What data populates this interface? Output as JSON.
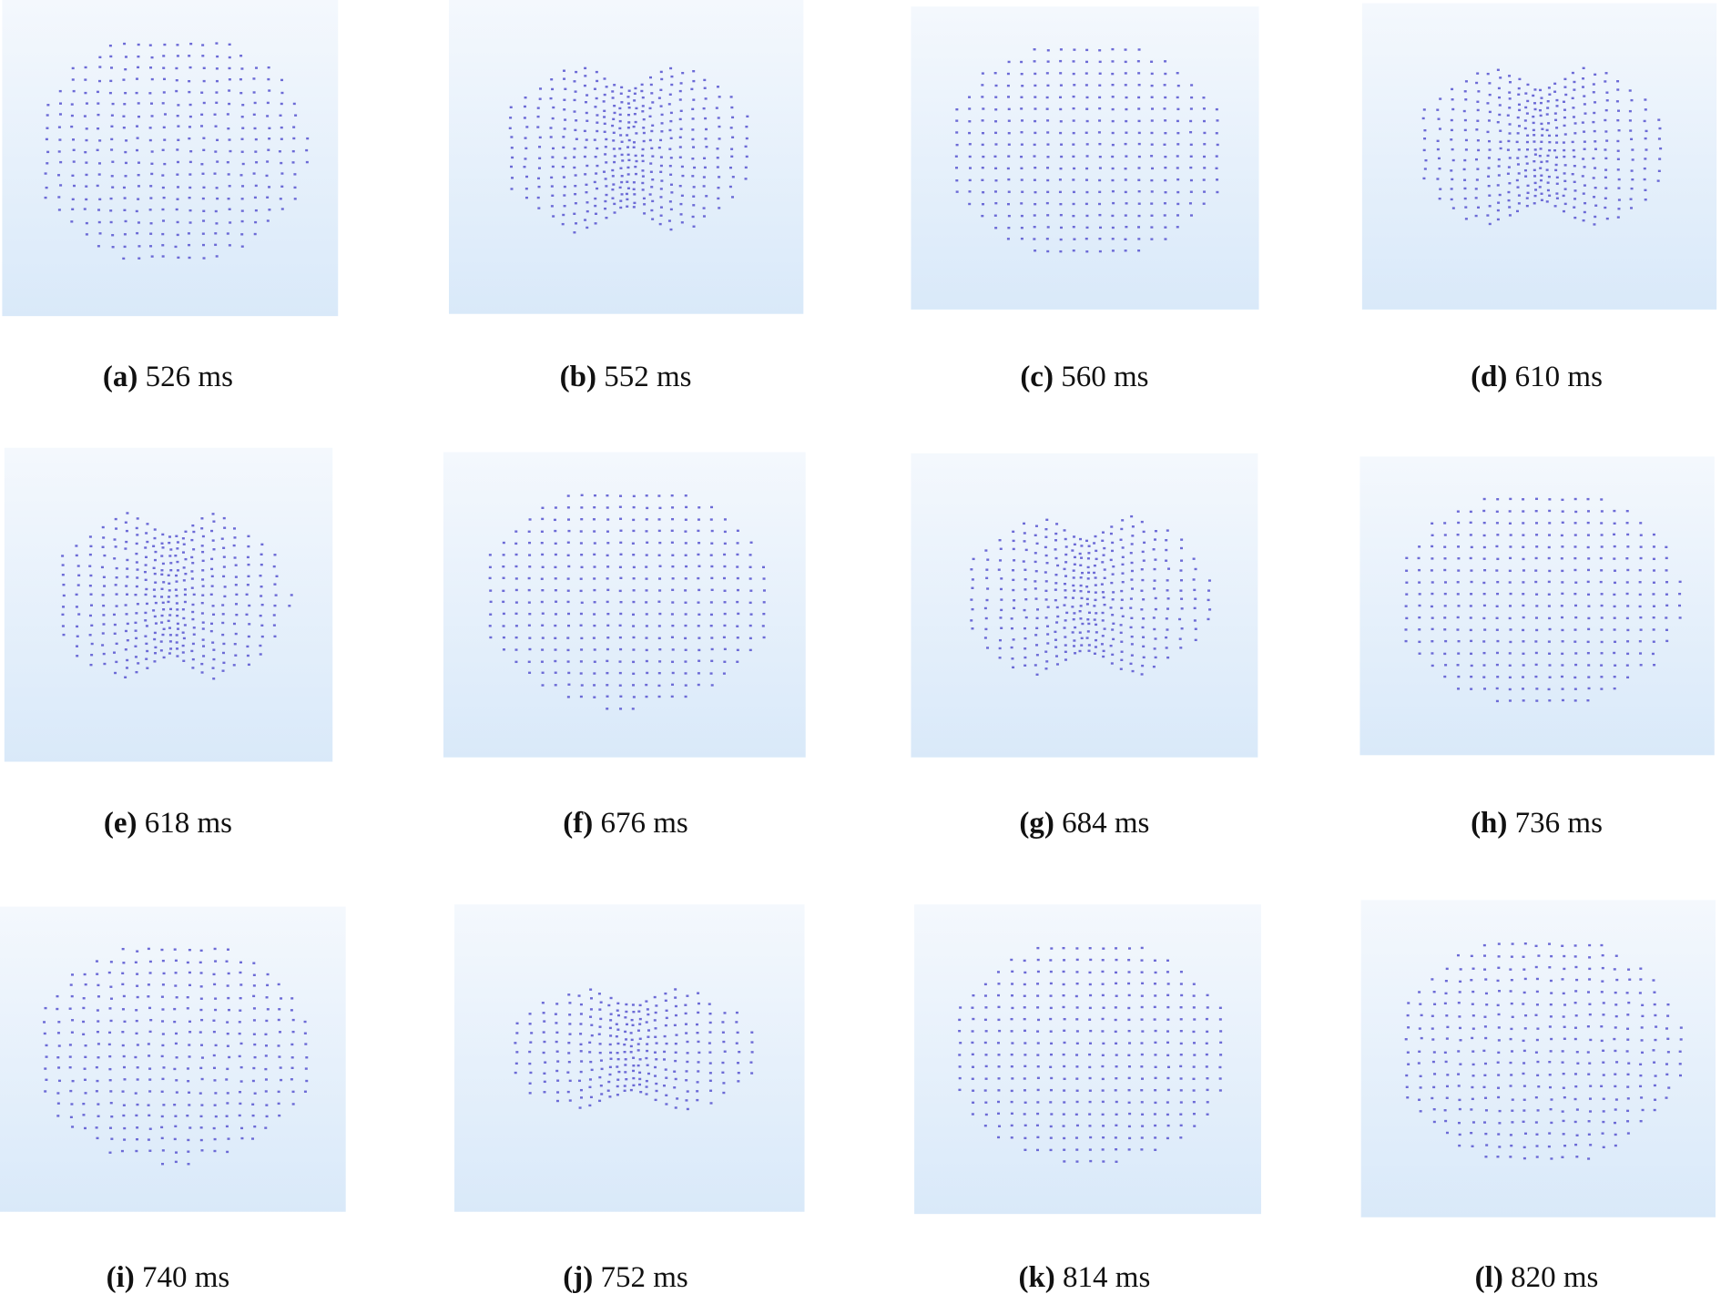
{
  "panels": [
    {
      "letter": "(a)",
      "time": "526 ms"
    },
    {
      "letter": "(b)",
      "time": "552 ms"
    },
    {
      "letter": "(c)",
      "time": "560 ms"
    },
    {
      "letter": "(d)",
      "time": "610 ms"
    },
    {
      "letter": "(e)",
      "time": "618 ms"
    },
    {
      "letter": "(f)",
      "time": "676 ms"
    },
    {
      "letter": "(g)",
      "time": "684 ms"
    },
    {
      "letter": "(h)",
      "time": "736 ms"
    },
    {
      "letter": "(i)",
      "time": "740 ms"
    },
    {
      "letter": "(j)",
      "time": "752 ms"
    },
    {
      "letter": "(k)",
      "time": "814 ms"
    },
    {
      "letter": "(l)",
      "time": "820 ms"
    }
  ]
}
